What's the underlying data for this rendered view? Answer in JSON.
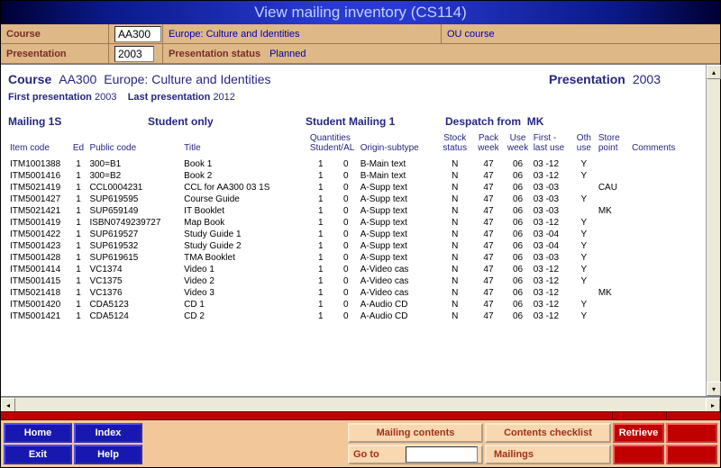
{
  "title": "View mailing inventory (CS114)",
  "form": {
    "course_label": "Course",
    "course_code": "AA300",
    "course_name": "Europe: Culture and Identities",
    "ou_course": "OU course",
    "presentation_label": "Presentation",
    "presentation_year": "2003",
    "pres_status_label": "Presentation status",
    "pres_status_value": "Planned"
  },
  "summary": {
    "course_label": "Course",
    "course_code": "AA300",
    "course_name": "Europe: Culture and Identities",
    "pres_label": "Presentation",
    "pres_year": "2003",
    "first_pres_label": "First presentation",
    "first_pres": "2003",
    "last_pres_label": "Last presentation",
    "last_pres": "2012"
  },
  "section": {
    "mailing": "Mailing 1S",
    "student_only": "Student only",
    "student_mailing": "Student Mailing 1",
    "despatch": "Despatch from",
    "despatch_loc": "MK"
  },
  "cols": {
    "item": "Item code",
    "ed": "Ed",
    "pub": "Public code",
    "title": "Title",
    "q": "Quantities Student/AL",
    "orig": "Origin-subtype",
    "stock": "Stock status",
    "pack": "Pack week",
    "use": "Use week",
    "first": "First - last use",
    "oth": "Oth use",
    "store": "Store point",
    "com": "Comments"
  },
  "rows": [
    {
      "item": "ITM1001388",
      "ed": "1",
      "pub": "300=B1",
      "title": "Book 1",
      "q1": "1",
      "q2": "0",
      "orig": "B-Main text",
      "stock": "N",
      "pack": "47",
      "use": "06",
      "first": "03 -12",
      "oth": "Y",
      "store": "",
      "com": ""
    },
    {
      "item": "ITM5001416",
      "ed": "1",
      "pub": "300=B2",
      "title": "Book 2",
      "q1": "1",
      "q2": "0",
      "orig": "B-Main text",
      "stock": "N",
      "pack": "47",
      "use": "06",
      "first": "03 -12",
      "oth": "Y",
      "store": "",
      "com": ""
    },
    {
      "item": "ITM5021419",
      "ed": "1",
      "pub": "CCL0004231",
      "title": "CCL for AA300 03 1S",
      "q1": "1",
      "q2": "0",
      "orig": "A-Supp text",
      "stock": "N",
      "pack": "47",
      "use": "06",
      "first": "03 -03",
      "oth": "",
      "store": "CAU",
      "com": ""
    },
    {
      "item": "ITM5001427",
      "ed": "1",
      "pub": "SUP619595",
      "title": "Course Guide",
      "q1": "1",
      "q2": "0",
      "orig": "A-Supp text",
      "stock": "N",
      "pack": "47",
      "use": "06",
      "first": "03 -03",
      "oth": "Y",
      "store": "",
      "com": ""
    },
    {
      "item": "ITM5021421",
      "ed": "1",
      "pub": "SUP659149",
      "title": "IT Booklet",
      "q1": "1",
      "q2": "0",
      "orig": "A-Supp text",
      "stock": "N",
      "pack": "47",
      "use": "06",
      "first": "03 -03",
      "oth": "",
      "store": "MK",
      "com": ""
    },
    {
      "item": "ITM5001419",
      "ed": "1",
      "pub": "ISBN0749239727",
      "title": "Map Book",
      "q1": "1",
      "q2": "0",
      "orig": "A-Supp text",
      "stock": "N",
      "pack": "47",
      "use": "06",
      "first": "03 -12",
      "oth": "Y",
      "store": "",
      "com": ""
    },
    {
      "item": "ITM5001422",
      "ed": "1",
      "pub": "SUP619527",
      "title": "Study Guide 1",
      "q1": "1",
      "q2": "0",
      "orig": "A-Supp text",
      "stock": "N",
      "pack": "47",
      "use": "06",
      "first": "03 -04",
      "oth": "Y",
      "store": "",
      "com": ""
    },
    {
      "item": "ITM5001423",
      "ed": "1",
      "pub": "SUP619532",
      "title": "Study Guide 2",
      "q1": "1",
      "q2": "0",
      "orig": "A-Supp text",
      "stock": "N",
      "pack": "47",
      "use": "06",
      "first": "03 -04",
      "oth": "Y",
      "store": "",
      "com": ""
    },
    {
      "item": "ITM5001428",
      "ed": "1",
      "pub": "SUP619615",
      "title": "TMA Booklet",
      "q1": "1",
      "q2": "0",
      "orig": "A-Supp text",
      "stock": "N",
      "pack": "47",
      "use": "06",
      "first": "03 -03",
      "oth": "Y",
      "store": "",
      "com": ""
    },
    {
      "item": "ITM5001414",
      "ed": "1",
      "pub": "VC1374",
      "title": "Video 1",
      "q1": "1",
      "q2": "0",
      "orig": "A-Video cas",
      "stock": "N",
      "pack": "47",
      "use": "06",
      "first": "03 -12",
      "oth": "Y",
      "store": "",
      "com": ""
    },
    {
      "item": "ITM5001415",
      "ed": "1",
      "pub": "VC1375",
      "title": "Video 2",
      "q1": "1",
      "q2": "0",
      "orig": "A-Video cas",
      "stock": "N",
      "pack": "47",
      "use": "06",
      "first": "03 -12",
      "oth": "Y",
      "store": "",
      "com": ""
    },
    {
      "item": "ITM5021418",
      "ed": "1",
      "pub": "VC1376",
      "title": "Video 3",
      "q1": "1",
      "q2": "0",
      "orig": "A-Video cas",
      "stock": "N",
      "pack": "47",
      "use": "06",
      "first": "03 -12",
      "oth": "",
      "store": "MK",
      "com": ""
    },
    {
      "item": "ITM5001420",
      "ed": "1",
      "pub": "CDA5123",
      "title": "CD 1",
      "q1": "1",
      "q2": "0",
      "orig": "A-Audio CD",
      "stock": "N",
      "pack": "47",
      "use": "06",
      "first": "03 -12",
      "oth": "Y",
      "store": "",
      "com": ""
    },
    {
      "item": "ITM5001421",
      "ed": "1",
      "pub": "CDA5124",
      "title": "CD 2",
      "q1": "1",
      "q2": "0",
      "orig": "A-Audio CD",
      "stock": "N",
      "pack": "47",
      "use": "06",
      "first": "03 -12",
      "oth": "Y",
      "store": "",
      "com": ""
    }
  ],
  "buttons": {
    "home": "Home",
    "index": "Index",
    "exit": "Exit",
    "help": "Help",
    "mailing_contents": "Mailing contents",
    "contents_checklist": "Contents checklist",
    "retrieve": "Retrieve",
    "goto": "Go to",
    "mailings": "Mailings"
  }
}
